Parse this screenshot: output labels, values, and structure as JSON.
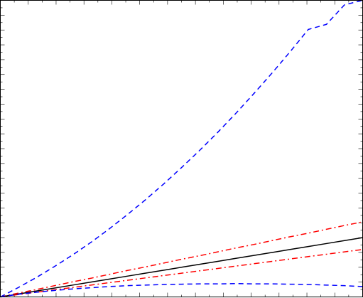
{
  "chart_data": {
    "type": "line",
    "title": "",
    "xlabel": "",
    "ylabel": "",
    "xlim": [
      0,
      1
    ],
    "ylim": [
      0,
      1
    ],
    "grid": false,
    "legend": "none",
    "ticks": {
      "x_major_count": 13,
      "y_major_count": 20,
      "minor_per_major": 1
    },
    "x": [
      0,
      0.05,
      0.1,
      0.15,
      0.2,
      0.25,
      0.3,
      0.35,
      0.4,
      0.45,
      0.5,
      0.55,
      0.6,
      0.65,
      0.7,
      0.75,
      0.8,
      0.85,
      0.9,
      0.95,
      1.0
    ],
    "series": [
      {
        "color": "#0000ff",
        "dash": "dashed",
        "values": [
          0.0,
          0.032,
          0.066,
          0.103,
          0.142,
          0.184,
          0.229,
          0.277,
          0.327,
          0.38,
          0.436,
          0.494,
          0.555,
          0.619,
          0.686,
          0.755,
          0.827,
          0.902,
          0.919,
          0.985,
          1.0
        ]
      },
      {
        "color": "#ff0000",
        "dash": "dashdot",
        "values": [
          0.0,
          0.013,
          0.025,
          0.038,
          0.051,
          0.063,
          0.076,
          0.089,
          0.101,
          0.114,
          0.127,
          0.139,
          0.152,
          0.165,
          0.177,
          0.19,
          0.203,
          0.215,
          0.228,
          0.241,
          0.253
        ]
      },
      {
        "color": "#000000",
        "dash": "solid",
        "values": [
          0.0,
          0.01,
          0.02,
          0.03,
          0.04,
          0.05,
          0.06,
          0.07,
          0.08,
          0.09,
          0.1,
          0.11,
          0.12,
          0.13,
          0.14,
          0.15,
          0.16,
          0.17,
          0.18,
          0.19,
          0.2
        ]
      },
      {
        "color": "#ff0000",
        "dash": "dashdot",
        "values": [
          0.0,
          0.008,
          0.016,
          0.024,
          0.032,
          0.04,
          0.048,
          0.056,
          0.064,
          0.072,
          0.08,
          0.088,
          0.096,
          0.104,
          0.112,
          0.12,
          0.128,
          0.136,
          0.144,
          0.152,
          0.16
        ]
      },
      {
        "color": "#0000ff",
        "dash": "dashed",
        "values": [
          0.0,
          0.009,
          0.016,
          0.022,
          0.027,
          0.031,
          0.035,
          0.038,
          0.04,
          0.042,
          0.043,
          0.044,
          0.044,
          0.045,
          0.044,
          0.044,
          0.043,
          0.042,
          0.04,
          0.038,
          0.035
        ]
      }
    ]
  }
}
